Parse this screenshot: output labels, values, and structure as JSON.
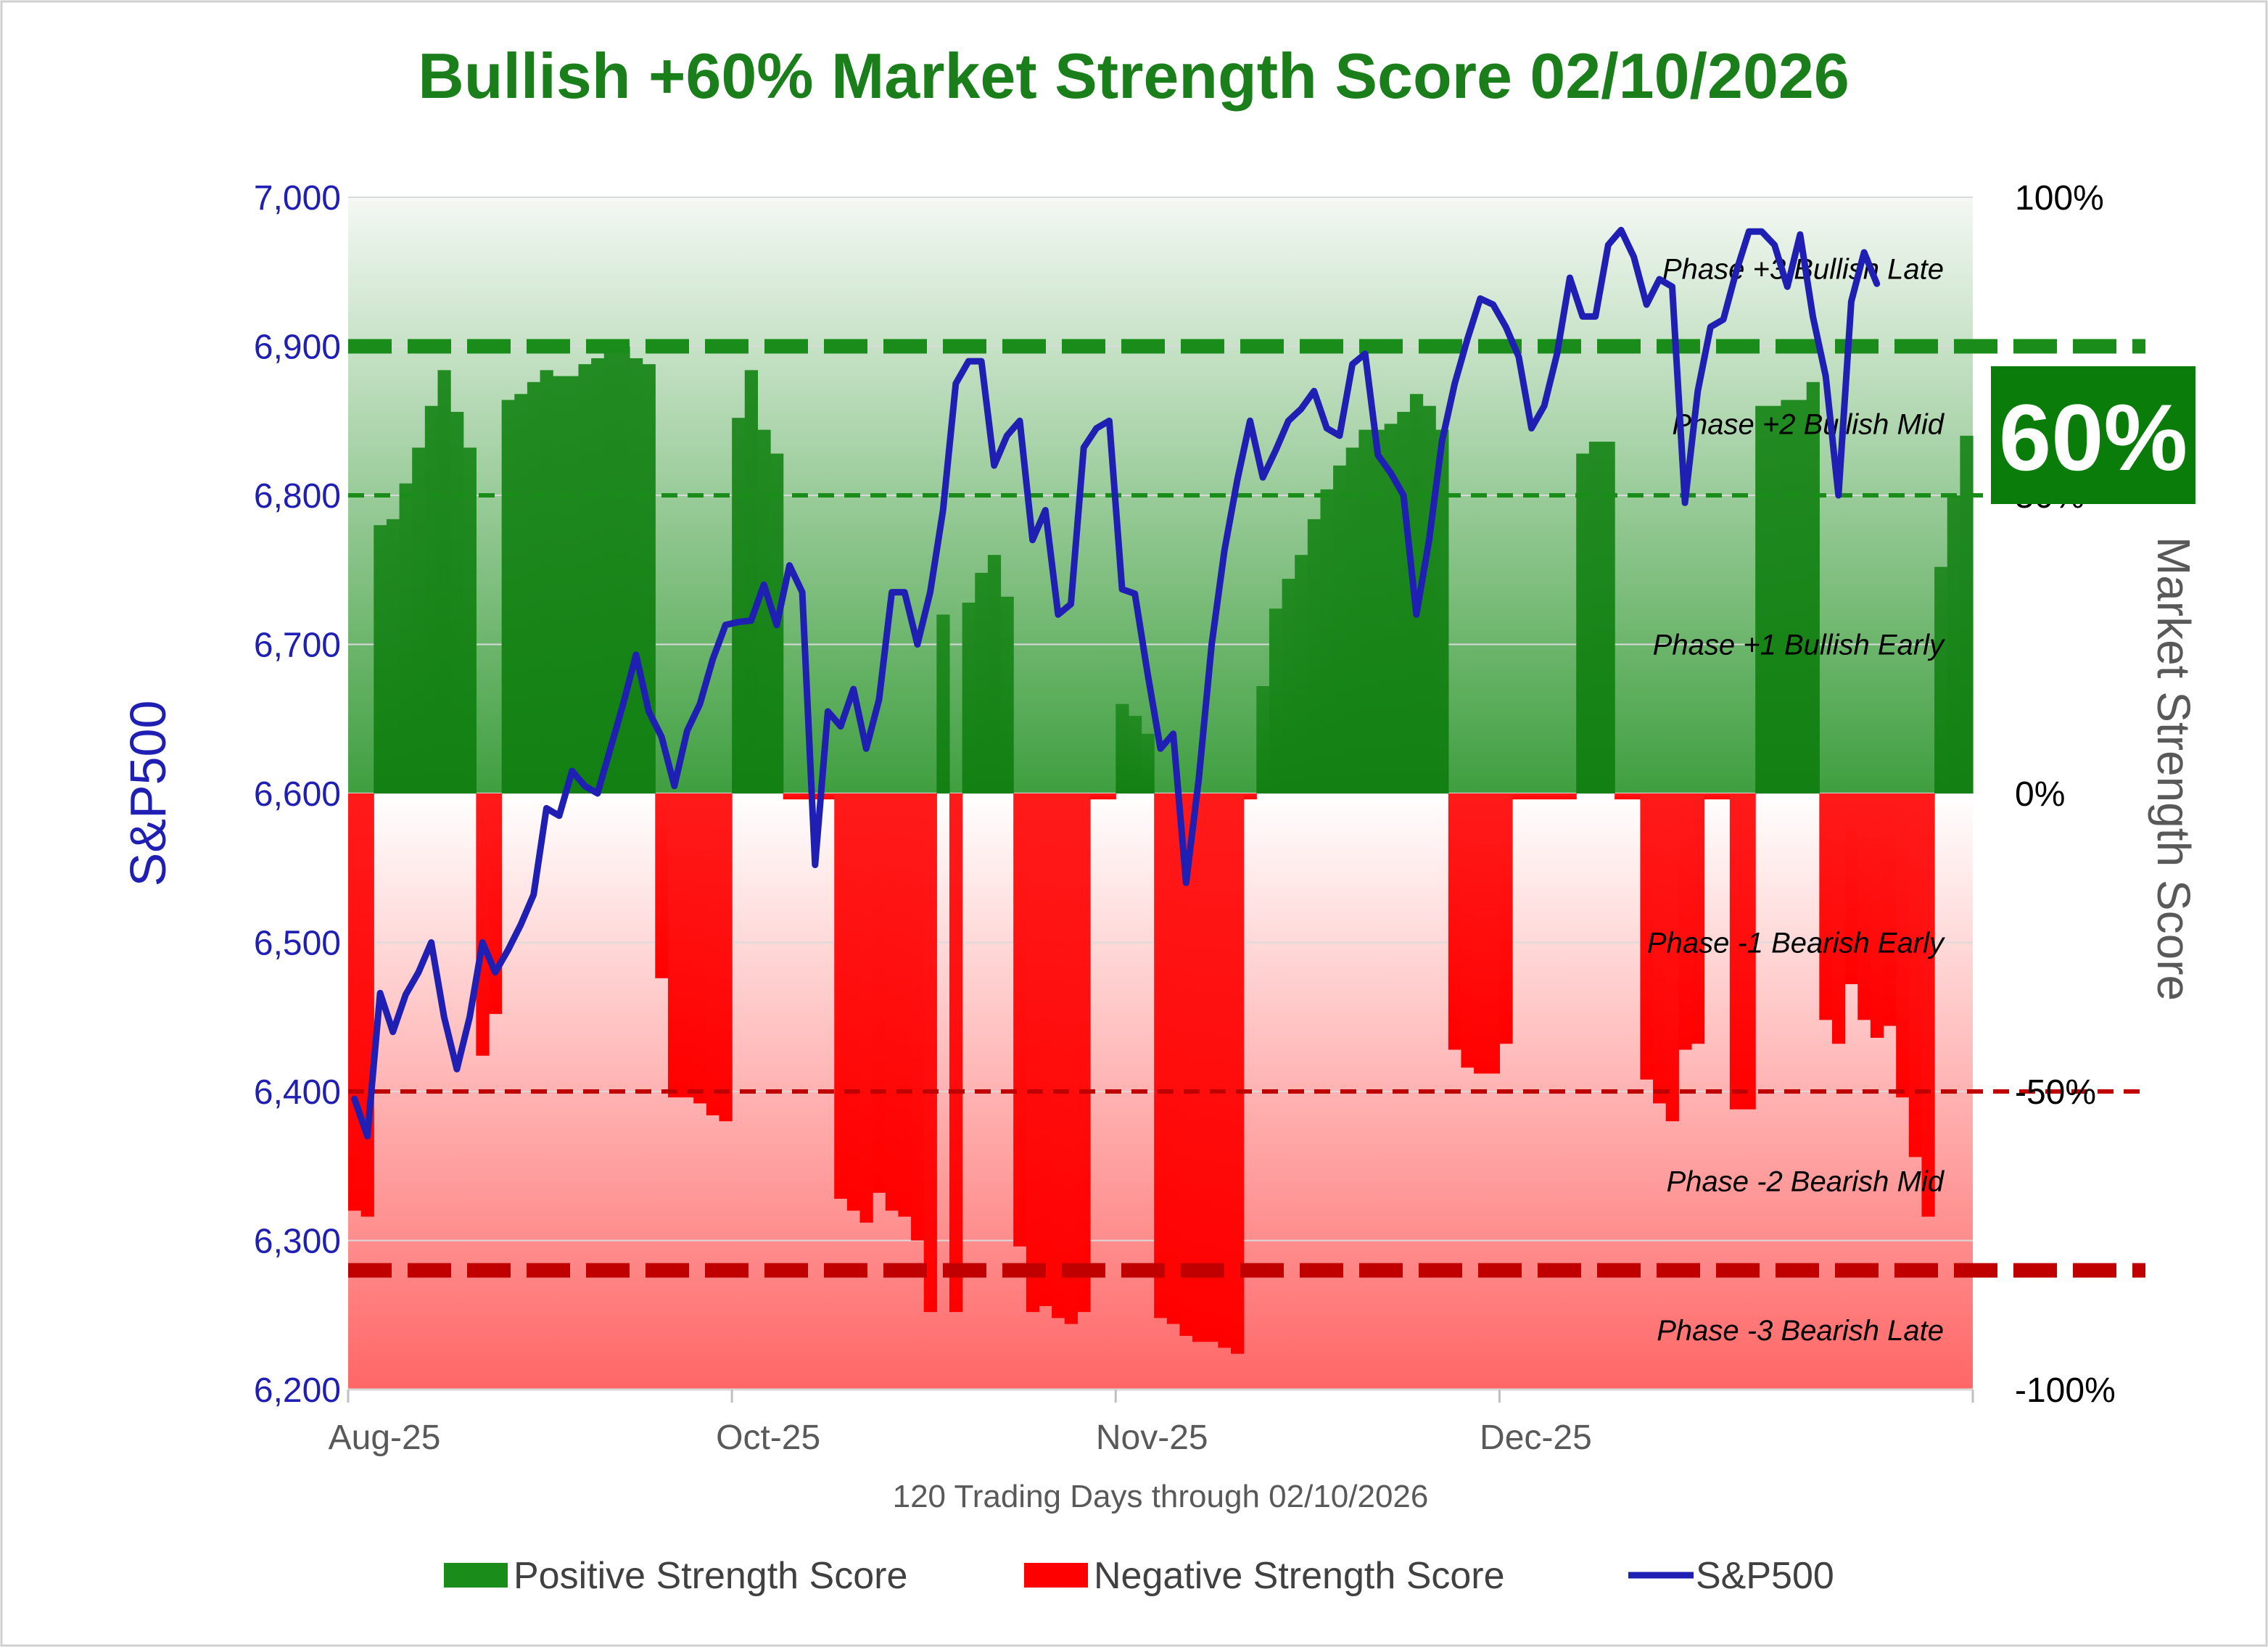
{
  "chart_data": {
    "type": "bar",
    "title": "Bullish +60% Market Strength Score 02/10/2026",
    "xlabel": "120 Trading Days through 02/10/2026",
    "ylabel_left": "S&P500",
    "ylabel_right": "Market Strength Score",
    "left_axis": {
      "min": 6200,
      "max": 7000,
      "ticks": [
        "6,200",
        "6,300",
        "6,400",
        "6,500",
        "6,600",
        "6,700",
        "6,800",
        "6,900",
        "7,000"
      ]
    },
    "right_axis": {
      "min": -100,
      "max": 100,
      "ticks": [
        "-100%",
        "-50%",
        "0%",
        "50%",
        "100%"
      ]
    },
    "x_ticks": [
      {
        "label": "Aug-25",
        "index": 0
      },
      {
        "label": "Oct-25",
        "index": 30
      },
      {
        "label": "Nov-25",
        "index": 60
      },
      {
        "label": "Dec-25",
        "index": 90
      }
    ],
    "thresholds": [
      {
        "value": 75,
        "style": "thick-dash",
        "color": "#1a8c1a"
      },
      {
        "value": 50,
        "style": "thin-dash",
        "color": "#1a8c1a"
      },
      {
        "value": -50,
        "style": "thin-dash",
        "color": "#c00000"
      },
      {
        "value": -80,
        "style": "thick-dash",
        "color": "#c00000"
      }
    ],
    "phases": [
      {
        "label": "Phase +3 Bullish Late",
        "level": 88
      },
      {
        "label": "Phase +2 Bullish Mid",
        "level": 62
      },
      {
        "label": "Phase +1 Bullish Early",
        "level": 25
      },
      {
        "label": "Phase -1 Bearish Early",
        "level": -25
      },
      {
        "label": "Phase -2 Bearish Mid",
        "level": -65
      },
      {
        "label": "Phase -3 Bearish Late",
        "level": -90
      }
    ],
    "badge": {
      "text": "60%",
      "value": 60
    },
    "series": [
      {
        "name": "Positive Strength Score / Negative Strength Score",
        "type": "bar",
        "axis": "right",
        "positive_color": "#1a8c1a",
        "negative_color": "#ff0000",
        "values": [
          -70,
          -71,
          45,
          46,
          52,
          58,
          65,
          71,
          64,
          58,
          -44,
          -37,
          66,
          67,
          69,
          71,
          70,
          70,
          72,
          73,
          75,
          75,
          73,
          72,
          -31,
          -51,
          -51,
          -52,
          -54,
          -55,
          63,
          71,
          61,
          57,
          -1,
          -1,
          -1,
          -1,
          -68,
          -70,
          -72,
          -67,
          -70,
          -71,
          -75,
          -87,
          30,
          -87,
          32,
          37,
          40,
          33,
          -76,
          -87,
          -86,
          -88,
          -89,
          -87,
          -1,
          -1,
          15,
          13,
          10,
          -88,
          -89,
          -91,
          -92,
          -92,
          -93,
          -94,
          -1,
          18,
          31,
          36,
          40,
          46,
          51,
          55,
          58,
          61,
          61,
          62,
          64,
          67,
          65,
          61,
          -43,
          -46,
          -47,
          -47,
          -42,
          -1,
          -1,
          -1,
          -1,
          -1,
          57,
          59,
          59,
          -1,
          -1,
          -48,
          -52,
          -55,
          -43,
          -42,
          -1,
          -1,
          -53,
          -53,
          65,
          65,
          66,
          66,
          69,
          -38,
          -42,
          -32,
          -38,
          -41,
          -39,
          -51,
          -61,
          -71,
          38,
          50,
          60
        ]
      },
      {
        "name": "S&P500",
        "type": "line",
        "axis": "left",
        "color": "#1f1fb4",
        "values": [
          6395,
          6370,
          6466,
          6440,
          6465,
          6480,
          6500,
          6450,
          6415,
          6450,
          6500,
          6480,
          6495,
          6512,
          6532,
          6590,
          6585,
          6615,
          6605,
          6600,
          6630,
          6660,
          6693,
          6655,
          6638,
          6605,
          6642,
          6660,
          6690,
          6713,
          6715,
          6716,
          6740,
          6713,
          6753,
          6735,
          6552,
          6655,
          6645,
          6670,
          6630,
          6663,
          6735,
          6735,
          6700,
          6735,
          6790,
          6875,
          6890,
          6890,
          6820,
          6840,
          6850,
          6770,
          6790,
          6720,
          6727,
          6832,
          6845,
          6850,
          6737,
          6734,
          6680,
          6630,
          6640,
          6540,
          6610,
          6700,
          6763,
          6810,
          6850,
          6812,
          6830,
          6850,
          6858,
          6870,
          6845,
          6840,
          6888,
          6895,
          6827,
          6815,
          6800,
          6720,
          6770,
          6836,
          6875,
          6905,
          6932,
          6928,
          6913,
          6893,
          6845,
          6860,
          6895,
          6946,
          6920,
          6920,
          6968,
          6978,
          6960,
          6928,
          6945,
          6940,
          6795,
          6870,
          6913,
          6918,
          6950,
          6977,
          6977,
          6968,
          6940,
          6975,
          6920,
          6880,
          6800,
          6930,
          6963,
          6942
        ]
      }
    ],
    "legend": [
      {
        "label": "Positive Strength Score",
        "swatch": "bar",
        "color": "#1a8c1a"
      },
      {
        "label": "Negative Strength Score",
        "swatch": "bar",
        "color": "#ff0000"
      },
      {
        "label": "S&P500",
        "swatch": "line",
        "color": "#1f1fb4"
      }
    ],
    "colors": {
      "title": "#1a7f1a",
      "left_axis": "#1f1fb4",
      "right_axis_label": "#595959"
    }
  }
}
